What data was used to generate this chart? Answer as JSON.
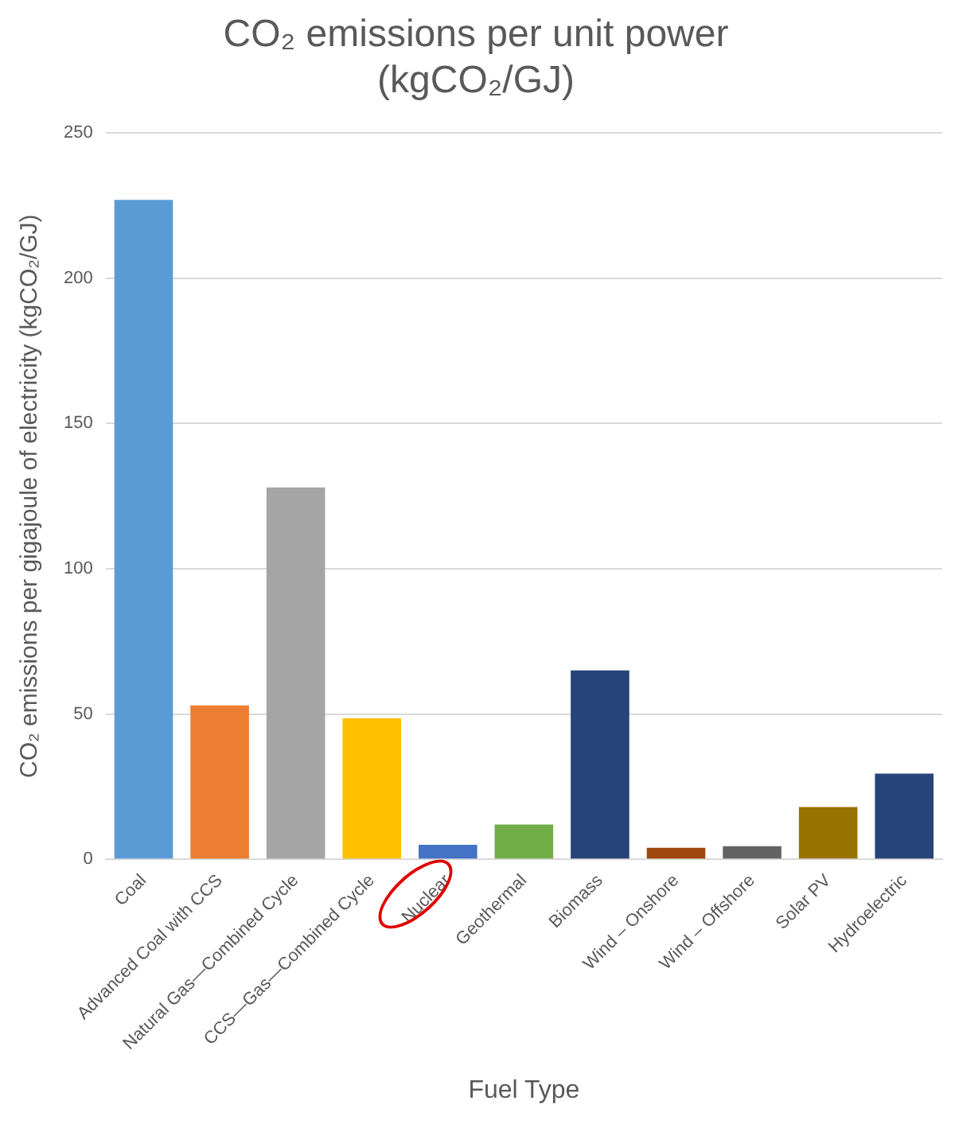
{
  "chart_data": {
    "type": "bar",
    "title": "CO₂ emissions per unit power\n(kgCO₂/GJ)",
    "xlabel": "Fuel Type",
    "ylabel": "CO₂ emissions per gigajoule of electricity (kgCO₂/GJ)",
    "categories": [
      "Coal",
      "Advanced Coal with CCS",
      "Natural Gas—Combined Cycle",
      "CCS—Gas—Combined Cycle",
      "Nuclear",
      "Geothermal",
      "Biomass",
      "Wind – Onshore",
      "Wind – Offshore",
      "Solar PV",
      "Hydroelectric"
    ],
    "values": [
      227,
      53,
      128,
      48.5,
      5,
      12,
      65,
      4,
      4.5,
      18,
      29.5
    ],
    "colors": [
      "#5b9bd5",
      "#ed7d31",
      "#a5a5a5",
      "#ffc000",
      "#4472c4",
      "#70ad47",
      "#264478",
      "#9e480e",
      "#636363",
      "#997300",
      "#264478"
    ],
    "ylim": [
      0,
      250
    ],
    "yticks": [
      0,
      50,
      100,
      150,
      200,
      250
    ],
    "grid": "y",
    "legend": false
  }
}
